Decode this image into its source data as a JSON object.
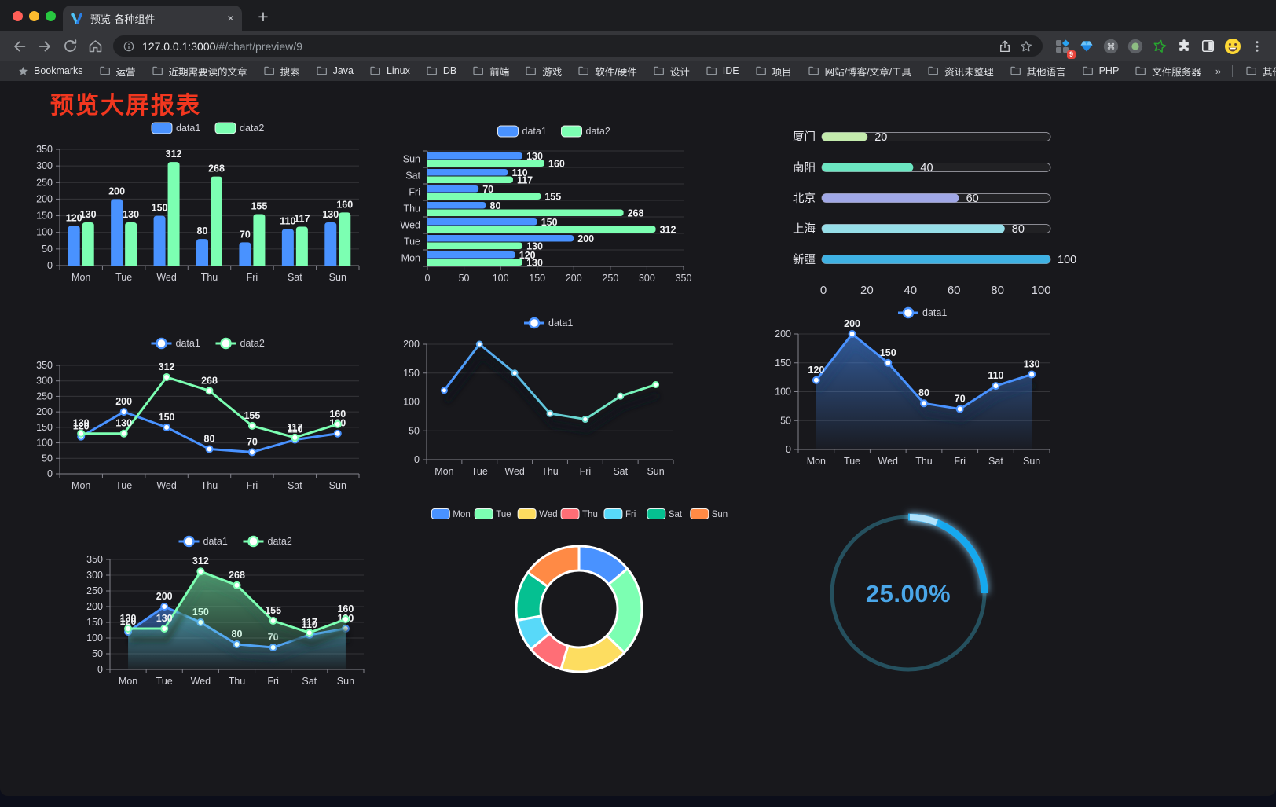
{
  "browser": {
    "tab": {
      "title": "预览-各种组件",
      "close": "×",
      "new_tab": "+"
    },
    "url": {
      "host": "127.0.0.1:3000",
      "path": "/#/chart/preview/9"
    },
    "extension_badge": "9",
    "bookmarks_label": "Bookmarks",
    "bookmarks": [
      "运营",
      "近期需要读的文章",
      "搜索",
      "Java",
      "Linux",
      "DB",
      "前端",
      "游戏",
      "软件/硬件",
      "设计",
      "IDE",
      "项目",
      "网站/博客/文章/工具",
      "资讯未整理",
      "其他语言",
      "PHP",
      "文件服务器"
    ],
    "bookmarks_overflow": "»",
    "other_bookmarks": "其他书签"
  },
  "page": {
    "title": "预览大屏报表",
    "title_color": "#f2371f"
  },
  "chart_data": [
    {
      "id": "bar-vertical",
      "type": "bar",
      "categories": [
        "Mon",
        "Tue",
        "Wed",
        "Thu",
        "Fri",
        "Sat",
        "Sun"
      ],
      "series": [
        {
          "name": "data1",
          "color": "#4992ff",
          "values": [
            120,
            200,
            150,
            80,
            70,
            110,
            130
          ]
        },
        {
          "name": "data2",
          "color": "#7cffb2",
          "values": [
            130,
            130,
            312,
            268,
            155,
            117,
            160
          ]
        }
      ],
      "ylim": [
        0,
        350
      ],
      "ytick": 50,
      "legend_position": "top",
      "grid": true
    },
    {
      "id": "bar-horizontal",
      "type": "bar",
      "orientation": "horizontal",
      "categories": [
        "Mon",
        "Tue",
        "Wed",
        "Thu",
        "Fri",
        "Sat",
        "Sun"
      ],
      "categories_display_top_to_bottom": [
        "Sun",
        "Sat",
        "Fri",
        "Thu",
        "Wed",
        "Tue",
        "Mon"
      ],
      "series": [
        {
          "name": "data1",
          "color": "#4992ff",
          "values": [
            120,
            200,
            150,
            80,
            70,
            110,
            130
          ]
        },
        {
          "name": "data2",
          "color": "#7cffb2",
          "values": [
            130,
            130,
            312,
            268,
            155,
            117,
            160
          ]
        }
      ],
      "xlim": [
        0,
        350
      ],
      "xtick": 50,
      "legend_position": "top",
      "grid": true
    },
    {
      "id": "progress-bars",
      "type": "bar",
      "subtype": "progress",
      "categories": [
        "厦门",
        "南阳",
        "北京",
        "上海",
        "新疆"
      ],
      "values": [
        20,
        40,
        60,
        80,
        100
      ],
      "colors": [
        "#c4ebad",
        "#6be6c1",
        "#a0a7e6",
        "#96dee8",
        "#3fb1e3"
      ],
      "xlim": [
        0,
        100
      ],
      "xticks": [
        0,
        20,
        40,
        60,
        80,
        100
      ]
    },
    {
      "id": "line-two-series",
      "type": "line",
      "categories": [
        "Mon",
        "Tue",
        "Wed",
        "Thu",
        "Fri",
        "Sat",
        "Sun"
      ],
      "series": [
        {
          "name": "data1",
          "color": "#4992ff",
          "values": [
            120,
            200,
            150,
            80,
            70,
            110,
            130
          ]
        },
        {
          "name": "data2",
          "color": "#7cffb2",
          "values": [
            130,
            130,
            312,
            268,
            155,
            117,
            160
          ]
        }
      ],
      "ylim": [
        0,
        350
      ],
      "ytick": 50,
      "point_labels": true,
      "legend_position": "top"
    },
    {
      "id": "line-gradient",
      "type": "line",
      "categories": [
        "Mon",
        "Tue",
        "Wed",
        "Thu",
        "Fri",
        "Sat",
        "Sun"
      ],
      "series": [
        {
          "name": "data1",
          "values": [
            120,
            200,
            150,
            80,
            70,
            110,
            130
          ]
        }
      ],
      "gradient_stroke": [
        "#4992ff",
        "#7cffb2"
      ],
      "ylim": [
        0,
        200
      ],
      "ytick": 50,
      "point_labels": false,
      "legend_position": "top",
      "shadow": true
    },
    {
      "id": "area-single",
      "type": "area",
      "categories": [
        "Mon",
        "Tue",
        "Wed",
        "Thu",
        "Fri",
        "Sat",
        "Sun"
      ],
      "series": [
        {
          "name": "data1",
          "color": "#4992ff",
          "values": [
            120,
            200,
            150,
            80,
            70,
            110,
            130
          ]
        }
      ],
      "ylim": [
        0,
        200
      ],
      "ytick": 50,
      "point_labels": true,
      "legend_position": "top",
      "shadow": true
    },
    {
      "id": "area-two-series",
      "type": "area",
      "categories": [
        "Mon",
        "Tue",
        "Wed",
        "Thu",
        "Fri",
        "Sat",
        "Sun"
      ],
      "series": [
        {
          "name": "data1",
          "color": "#4992ff",
          "values": [
            120,
            200,
            150,
            80,
            70,
            110,
            130
          ]
        },
        {
          "name": "data2",
          "color": "#7cffb2",
          "values": [
            130,
            130,
            312,
            268,
            155,
            117,
            160
          ]
        }
      ],
      "ylim": [
        0,
        350
      ],
      "ytick": 50,
      "point_labels": true,
      "legend_position": "top",
      "shadow": true
    },
    {
      "id": "donut",
      "type": "pie",
      "labels": [
        "Mon",
        "Tue",
        "Wed",
        "Thu",
        "Fri",
        "Sat",
        "Sun"
      ],
      "values": [
        120,
        200,
        150,
        80,
        70,
        110,
        130
      ],
      "colors": [
        "#4992ff",
        "#7cffb2",
        "#fddd60",
        "#ff6e76",
        "#58d9f9",
        "#05c091",
        "#ff8a45"
      ],
      "donut": true,
      "legend_position": "top"
    },
    {
      "id": "gauge",
      "type": "gauge",
      "percent": 25,
      "value_label": "25.00%",
      "color": "#17a8ee",
      "track_color": "#25505e",
      "text_color": "#4aa6e8"
    }
  ]
}
